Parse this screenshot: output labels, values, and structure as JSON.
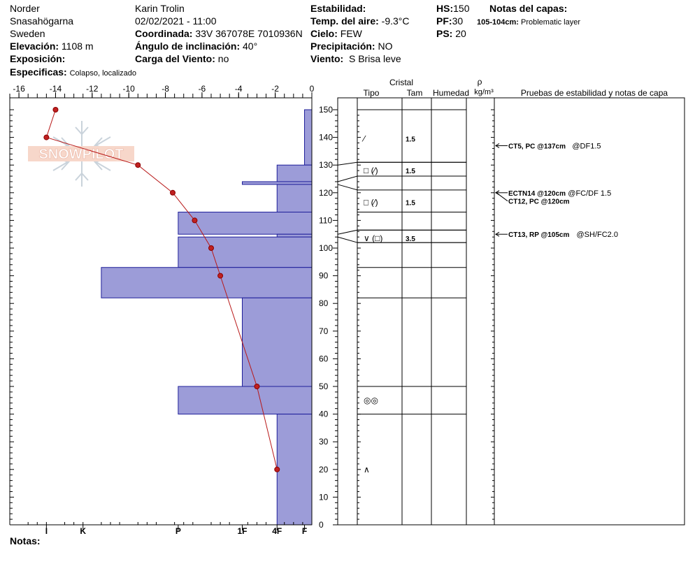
{
  "header": {
    "location": [
      "Norder",
      "Snasahögarna",
      "Sweden"
    ],
    "elevation_label": "Elevación:",
    "elevation_value": "1108 m",
    "aspect_label": "Exposición:",
    "aspect_value": "",
    "specifics_label": "Especificas:",
    "specifics_value": "Colapso, localizado",
    "observer": "Karin  Trolin",
    "datetime": "02/02/2021 - 11:00",
    "coord_label": "Coordinada:",
    "coord_value": "33V 367078E 7010936N",
    "slope_label": "Ángulo de inclinación:",
    "slope_value": "40°",
    "wind_load_label": "Carga del Viento:",
    "wind_load_value": "no",
    "stability_label": "Estabilidad:",
    "stability_value": "",
    "air_temp_label": "Temp. del aire:",
    "air_temp_value": "-9.3°C",
    "sky_label": "Cielo:",
    "sky_value": "FEW",
    "precip_label": "Precipitación:",
    "precip_value": "NO",
    "wind_label": "Viento:",
    "wind_value": "S Brisa leve",
    "hs_label": "HS:",
    "hs_value": "150",
    "pf_label": "PF:",
    "pf_value": "30",
    "ps_label": "PS:",
    "ps_value": "20",
    "layer_notes_label": "Notas del capas:",
    "layer_note_range": "105-104cm:",
    "layer_note_text": "Problematic layer"
  },
  "notes_label": "Notas:",
  "watermark": "SNOWPILOT",
  "columns": {
    "cristal": "Cristal",
    "tipo": "Tipo",
    "tam": "Tam",
    "humedad": "Humedad",
    "rho": "ρ",
    "density_unit": "kg/m³",
    "tests": "Pruebas de estabilidad y notas de capa"
  },
  "chart_data": {
    "type": "line",
    "temperature_axis": {
      "ticks": [
        -16,
        -14,
        -12,
        -10,
        -8,
        -6,
        -4,
        -2,
        0
      ],
      "range": [
        -16.5,
        0
      ]
    },
    "height_axis": {
      "ticks": [
        0,
        10,
        20,
        30,
        40,
        50,
        60,
        70,
        80,
        90,
        100,
        110,
        120,
        130,
        140,
        150
      ],
      "range": [
        0,
        150
      ]
    },
    "hardness_ticks": [
      "I",
      "K",
      "P",
      "1F",
      "4F",
      "F"
    ],
    "temperature_profile": [
      {
        "h": 150,
        "t": -14.0
      },
      {
        "h": 140,
        "t": -14.5
      },
      {
        "h": 130,
        "t": -9.5
      },
      {
        "h": 120,
        "t": -7.6
      },
      {
        "h": 110,
        "t": -6.4
      },
      {
        "h": 100,
        "t": -5.5
      },
      {
        "h": 90,
        "t": -5.0
      },
      {
        "h": 50,
        "t": -3.0
      },
      {
        "h": 20,
        "t": -1.9
      }
    ],
    "hardness_profile": [
      {
        "top": 150,
        "bottom": 130,
        "t": -0.4
      },
      {
        "top": 130,
        "bottom": 124,
        "t": -1.9
      },
      {
        "top": 124,
        "bottom": 123,
        "t": -3.8
      },
      {
        "top": 123,
        "bottom": 113,
        "t": -1.9
      },
      {
        "top": 113,
        "bottom": 105,
        "t": -7.3
      },
      {
        "top": 105,
        "bottom": 104,
        "t": -1.9
      },
      {
        "top": 104,
        "bottom": 93,
        "t": -7.3
      },
      {
        "top": 93,
        "bottom": 82,
        "t": -11.5
      },
      {
        "top": 82,
        "bottom": 50,
        "t": -3.8
      },
      {
        "top": 50,
        "bottom": 40,
        "t": -7.3
      },
      {
        "top": 40,
        "bottom": 0,
        "t": -1.9
      }
    ],
    "layer_boundaries": [
      150,
      131,
      126,
      113,
      106.5,
      102,
      93,
      82,
      50,
      40
    ],
    "layer_markers": [
      {
        "from": 130,
        "to": 131
      },
      {
        "from": 124,
        "to": 126
      },
      {
        "from": 123,
        "to": 121
      },
      {
        "from": 105,
        "to": 106.5
      },
      {
        "from": 104,
        "to": 102
      }
    ],
    "crystals": [
      {
        "h": 139.5,
        "tipo": "⁄",
        "tam": "1.5"
      },
      {
        "h": 128,
        "tipo": "□ (⁄)",
        "tam": "1.5"
      },
      {
        "h": 116.5,
        "tipo": "□ (⁄)",
        "tam": "1.5"
      },
      {
        "h": 103.5,
        "tipo": "∨ (□)",
        "tam": "3.5"
      },
      {
        "h": 45,
        "tipo": "◎◎",
        "tam": ""
      },
      {
        "h": 20,
        "tipo": "∧",
        "tam": ""
      }
    ],
    "tests": [
      {
        "h": 137,
        "code": "CT5, PC @137cm",
        "detail": "@DF1.5"
      },
      {
        "h": 120,
        "code": "ECTN14 @120cm",
        "detail": "@FC/DF 1.5"
      },
      {
        "h": 117,
        "code": "CT12, PC @120cm",
        "detail": ""
      },
      {
        "h": 105,
        "code": "CT13, RP @105cm",
        "detail": "@SH/FC2.0"
      }
    ]
  }
}
